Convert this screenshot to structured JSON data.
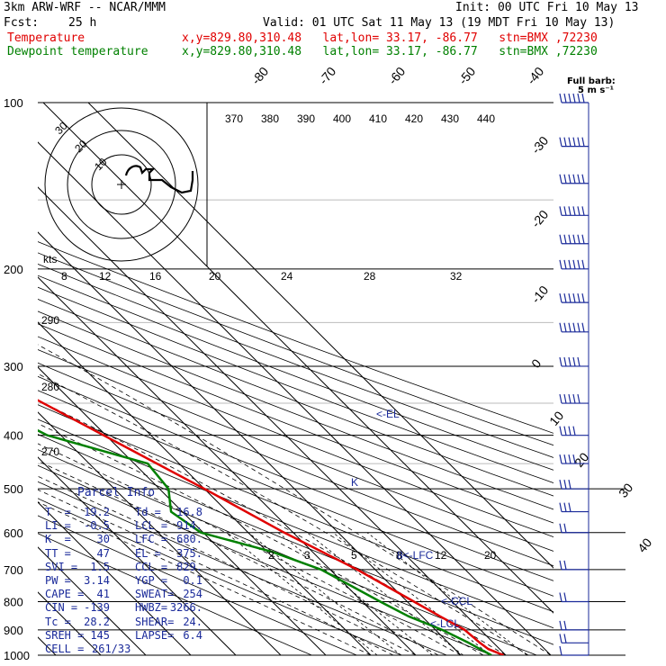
{
  "header": {
    "model": "3km ARW-WRF -- NCAR/MMM",
    "init": "Init: 00 UTC Fri 10 May 13",
    "fcst_label": "Fcst:",
    "fcst_value": "25 h",
    "valid": "Valid: 01 UTC Sat 11 May 13 (19 MDT Fri 10 May 13)",
    "temp_label": "Temperature",
    "dew_label": "Dewpoint temperature",
    "temp_info": "x,y=829.80,310.48   lat,lon= 33.17, -86.77   stn=BMX ,72230",
    "dew_info": "x,y=829.80,310.48   lat,lon= 33.17, -86.77   stn=BMX ,72230"
  },
  "colors": {
    "temperature": "#e00000",
    "dewpoint": "#008000",
    "info": "#1a2a9a",
    "barb": "#1a2a9a"
  },
  "barb_legend": {
    "line1": "Full barb:",
    "line2": "5 m s⁻¹"
  },
  "chart_data": {
    "type": "line",
    "title": "",
    "xlabel": "",
    "ylabel": "",
    "pressure_levels": [
      100,
      200,
      300,
      400,
      500,
      600,
      700,
      800,
      900,
      1000
    ],
    "isotherm_labels": [
      "-80",
      "-70",
      "-60",
      "-50",
      "-40",
      "-30",
      "-20",
      "-10",
      "0",
      "10",
      "20",
      "30",
      "40"
    ],
    "theta_labels": [
      "370",
      "380",
      "390",
      "400",
      "410",
      "420",
      "430",
      "440"
    ],
    "theta_left_labels": [
      "290",
      "280",
      "270"
    ],
    "mixing_ratio_labels": [
      "2",
      "3",
      "5",
      "8",
      "12",
      "20"
    ],
    "hodograph": {
      "units": "kts",
      "ring_labels": [
        "30",
        "20",
        "10"
      ],
      "speed_labels": [
        "8",
        "12",
        "16",
        "20",
        "24",
        "28",
        "32"
      ]
    },
    "annotations": [
      "<-EL",
      "K",
      "8<-LFC",
      "<-CCL",
      "<-LCL"
    ],
    "series": [
      {
        "name": "Temperature",
        "values": [
          [
            1000,
            19.5
          ],
          [
            975,
            17.5
          ],
          [
            950,
            17.0
          ],
          [
            900,
            16.5
          ],
          [
            850,
            14.0
          ],
          [
            800,
            11.5
          ],
          [
            700,
            6.0
          ],
          [
            600,
            -2.0
          ],
          [
            500,
            -10.0
          ],
          [
            400,
            -20.5
          ],
          [
            300,
            -34.0
          ],
          [
            250,
            -43.5
          ],
          [
            200,
            -55.0
          ],
          [
            150,
            -61.0
          ],
          [
            125,
            -60.0
          ],
          [
            100,
            -62.0
          ]
        ]
      },
      {
        "name": "Dewpoint temperature",
        "values": [
          [
            1000,
            16.8
          ],
          [
            950,
            14.5
          ],
          [
            900,
            11.5
          ],
          [
            850,
            7.0
          ],
          [
            800,
            4.0
          ],
          [
            700,
            -2.0
          ],
          [
            650,
            -9.0
          ],
          [
            600,
            -20.5
          ],
          [
            550,
            -22.5
          ],
          [
            500,
            -18.0
          ],
          [
            450,
            -17.0
          ],
          [
            400,
            -33.0
          ],
          [
            350,
            -40.0
          ],
          [
            300,
            -32.0
          ],
          [
            250,
            -45.0
          ],
          [
            200,
            -60.0
          ],
          [
            150,
            -70.0
          ],
          [
            120,
            -80.0
          ],
          [
            100,
            -80.5
          ]
        ]
      }
    ],
    "wind_barbs": [
      {
        "p": 100,
        "kts": 95
      },
      {
        "p": 120,
        "kts": 95
      },
      {
        "p": 140,
        "kts": 90
      },
      {
        "p": 160,
        "kts": 90
      },
      {
        "p": 180,
        "kts": 85
      },
      {
        "p": 200,
        "kts": 80
      },
      {
        "p": 230,
        "kts": 70
      },
      {
        "p": 260,
        "kts": 60
      },
      {
        "p": 300,
        "kts": 50
      },
      {
        "p": 350,
        "kts": 45
      },
      {
        "p": 400,
        "kts": 40
      },
      {
        "p": 450,
        "kts": 35
      },
      {
        "p": 500,
        "kts": 30
      },
      {
        "p": 550,
        "kts": 25
      },
      {
        "p": 600,
        "kts": 20
      },
      {
        "p": 700,
        "kts": 15
      },
      {
        "p": 800,
        "kts": 15
      },
      {
        "p": 900,
        "kts": 20
      },
      {
        "p": 950,
        "kts": 15
      },
      {
        "p": 1000,
        "kts": 10
      }
    ]
  },
  "parcel_info": {
    "title": "Parcel Info",
    "rows": [
      [
        "T  =",
        "19.2",
        "Td =",
        "16.8"
      ],
      [
        "LI =",
        "-0.5",
        "LCL =",
        "914."
      ],
      [
        "K  =",
        "30",
        "LFC =",
        "680."
      ],
      [
        "TT =",
        "47",
        "EL =",
        "375."
      ],
      [
        "SVI =",
        "1.5",
        "CCL =",
        "829."
      ],
      [
        "PW =",
        "3.14",
        "YGP =",
        "0.1"
      ],
      [
        "CAPE =",
        "41",
        "SWEAT=",
        "254"
      ],
      [
        "CIN =",
        "-139",
        "HWBZ=",
        "3266."
      ],
      [
        "Tc =",
        "28.2",
        "SHEAR=",
        "24."
      ],
      [
        "SREH =",
        "145",
        "LAPSE=",
        "6.4"
      ]
    ],
    "cell_label": "CELL =",
    "cell_value": "261/33"
  }
}
